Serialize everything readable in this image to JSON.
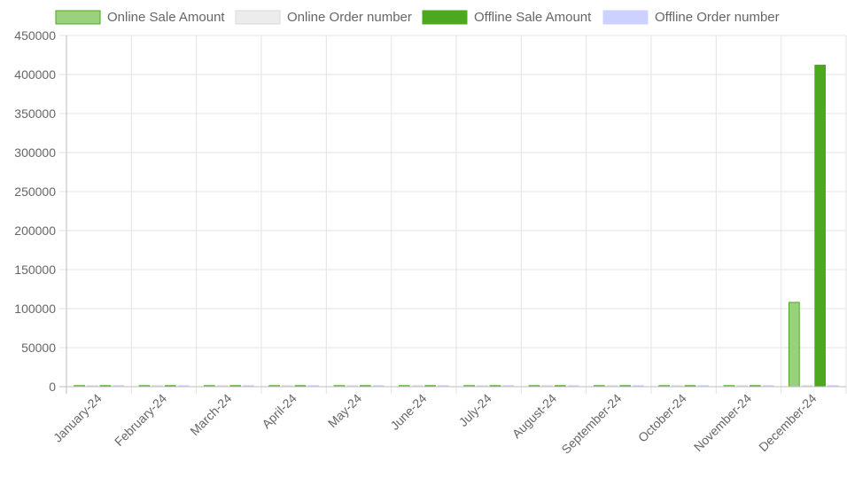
{
  "chart_data": {
    "type": "bar",
    "categories": [
      "January-24",
      "February-24",
      "March-24",
      "April-24",
      "May-24",
      "June-24",
      "July-24",
      "August-24",
      "September-24",
      "October-24",
      "November-24",
      "December-24"
    ],
    "series": [
      {
        "name": "Online Sale Amount",
        "values": [
          0,
          0,
          0,
          0,
          0,
          0,
          0,
          0,
          0,
          0,
          0,
          108000
        ],
        "color": "#9ad17f",
        "border": "#4ca81f"
      },
      {
        "name": "Online Order number",
        "values": [
          0,
          0,
          0,
          0,
          0,
          0,
          0,
          0,
          0,
          0,
          0,
          0
        ],
        "color": "#ececec",
        "border": "#d8d8d8"
      },
      {
        "name": "Offline Sale Amount",
        "values": [
          0,
          0,
          0,
          0,
          0,
          0,
          0,
          0,
          0,
          0,
          0,
          412000
        ],
        "color": "#4ca81f",
        "border": "#4ca81f"
      },
      {
        "name": "Offline Order number",
        "values": [
          0,
          0,
          0,
          0,
          0,
          0,
          0,
          0,
          0,
          0,
          0,
          0
        ],
        "color": "#cdd1ff",
        "border": "#cdd1ff"
      }
    ],
    "yticks": [
      "0",
      "50000",
      "100000",
      "150000",
      "200000",
      "250000",
      "300000",
      "350000",
      "400000",
      "450000"
    ],
    "ylim": [
      0,
      450000
    ],
    "title": "",
    "xlabel": "",
    "ylabel": "",
    "grid": true,
    "legend": "top"
  }
}
